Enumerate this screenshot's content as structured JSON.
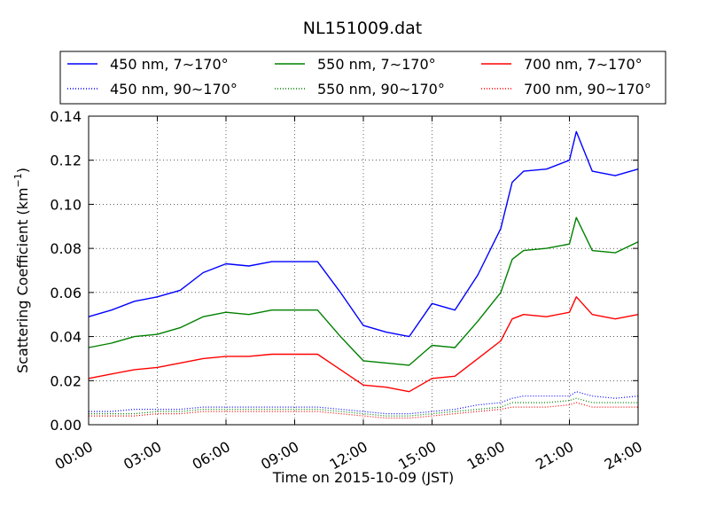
{
  "chart_data": {
    "type": "line",
    "title": "NL151009.dat",
    "xlabel": "Time on 2015-10-09 (JST)",
    "ylabel": "Scattering Coefficient (km",
    "ylabel_exponent": "−1",
    "ylabel_close": ")",
    "xlim": [
      0,
      24
    ],
    "ylim": [
      0,
      0.14
    ],
    "grid": true,
    "legend_placement": "top",
    "x_ticks": [
      0,
      3,
      6,
      9,
      12,
      15,
      18,
      21,
      24
    ],
    "x_tick_labels": [
      "00:00",
      "03:00",
      "06:00",
      "09:00",
      "12:00",
      "15:00",
      "18:00",
      "21:00",
      "24:00"
    ],
    "y_ticks": [
      0,
      0.02,
      0.04,
      0.06,
      0.08,
      0.1,
      0.12,
      0.14
    ],
    "y_tick_labels": [
      "0.00",
      "0.02",
      "0.04",
      "0.06",
      "0.08",
      "0.10",
      "0.12",
      "0.14"
    ],
    "x": [
      0,
      1,
      2,
      3,
      4,
      5,
      6,
      7,
      8,
      9,
      10,
      11,
      12,
      13,
      14,
      15,
      16,
      17,
      18,
      18.5,
      19,
      20,
      21,
      21.3,
      22,
      23,
      24
    ],
    "series": [
      {
        "name": "450 nm, 7∼170°",
        "color": "#0000ff",
        "style": "solid",
        "values": [
          0.049,
          0.052,
          0.056,
          0.058,
          0.061,
          0.069,
          0.073,
          0.072,
          0.074,
          0.074,
          0.074,
          0.06,
          0.045,
          0.042,
          0.04,
          0.055,
          0.052,
          0.068,
          0.089,
          0.11,
          0.115,
          0.116,
          0.12,
          0.133,
          0.115,
          0.113,
          0.116
        ]
      },
      {
        "name": "550 nm, 7∼170°",
        "color": "#008000",
        "style": "solid",
        "values": [
          0.035,
          0.037,
          0.04,
          0.041,
          0.044,
          0.049,
          0.051,
          0.05,
          0.052,
          0.052,
          0.052,
          0.04,
          0.029,
          0.028,
          0.027,
          0.036,
          0.035,
          0.047,
          0.06,
          0.075,
          0.079,
          0.08,
          0.082,
          0.094,
          0.079,
          0.078,
          0.083
        ]
      },
      {
        "name": "700 nm, 7∼170°",
        "color": "#ff0000",
        "style": "solid",
        "values": [
          0.021,
          0.023,
          0.025,
          0.026,
          0.028,
          0.03,
          0.031,
          0.031,
          0.032,
          0.032,
          0.032,
          0.025,
          0.018,
          0.017,
          0.015,
          0.021,
          0.022,
          0.03,
          0.038,
          0.048,
          0.05,
          0.049,
          0.051,
          0.058,
          0.05,
          0.048,
          0.05
        ]
      },
      {
        "name": "450 nm, 90∼170°",
        "color": "#0000ff",
        "style": "dotted",
        "values": [
          0.006,
          0.006,
          0.007,
          0.007,
          0.007,
          0.008,
          0.008,
          0.008,
          0.008,
          0.008,
          0.008,
          0.007,
          0.006,
          0.005,
          0.005,
          0.006,
          0.007,
          0.009,
          0.01,
          0.012,
          0.013,
          0.013,
          0.013,
          0.015,
          0.013,
          0.012,
          0.013
        ]
      },
      {
        "name": "550 nm, 90∼170°",
        "color": "#008000",
        "style": "dotted",
        "values": [
          0.005,
          0.005,
          0.005,
          0.006,
          0.006,
          0.007,
          0.007,
          0.007,
          0.007,
          0.007,
          0.007,
          0.006,
          0.005,
          0.004,
          0.004,
          0.005,
          0.006,
          0.007,
          0.008,
          0.01,
          0.01,
          0.01,
          0.011,
          0.012,
          0.01,
          0.01,
          0.01
        ]
      },
      {
        "name": "700 nm, 90∼170°",
        "color": "#ff0000",
        "style": "dotted",
        "values": [
          0.004,
          0.004,
          0.004,
          0.005,
          0.005,
          0.006,
          0.006,
          0.006,
          0.006,
          0.006,
          0.006,
          0.005,
          0.004,
          0.003,
          0.003,
          0.004,
          0.005,
          0.006,
          0.007,
          0.008,
          0.008,
          0.008,
          0.009,
          0.01,
          0.008,
          0.008,
          0.008
        ]
      }
    ],
    "legend_order": [
      0,
      3,
      1,
      4,
      2,
      5
    ]
  }
}
